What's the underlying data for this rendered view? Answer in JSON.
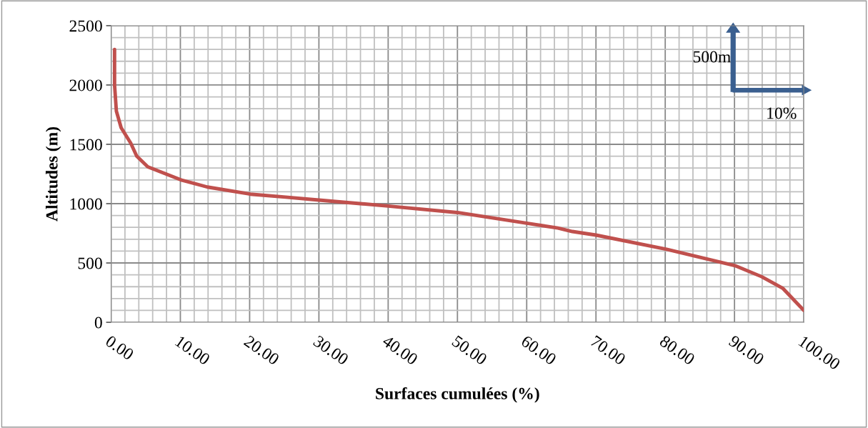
{
  "chart_data": {
    "type": "line",
    "xlabel": "Surfaces cumulées (%)",
    "ylabel": "Altitudes (m)",
    "x": [
      0.5,
      0.5,
      0.76,
      1.45,
      2.83,
      3.7,
      5.3,
      10.1,
      13.9,
      20.1,
      25.2,
      30.0,
      40.0,
      50.0,
      60.0,
      64.5,
      66.6,
      70.0,
      80.2,
      90.2,
      93.9,
      97.0,
      100.0
    ],
    "series": [
      {
        "color": "#c0504d",
        "values": [
          2300,
          2000,
          1780,
          1640,
          1510,
          1400,
          1310,
          1200,
          1140,
          1080,
          1055,
          1030,
          980,
          925,
          835,
          795,
          765,
          735,
          615,
          475,
          385,
          285,
          100
        ]
      }
    ],
    "xlim": [
      0,
      100
    ],
    "ylim": [
      0,
      2500
    ],
    "xticks": [
      {
        "value": 0,
        "label": "0.00"
      },
      {
        "value": 10,
        "label": "10.00"
      },
      {
        "value": 20,
        "label": "20.00"
      },
      {
        "value": 30,
        "label": "30.00"
      },
      {
        "value": 40,
        "label": "40.00"
      },
      {
        "value": 50,
        "label": "50.00"
      },
      {
        "value": 60,
        "label": "60.00"
      },
      {
        "value": 70,
        "label": "70.00"
      },
      {
        "value": 80,
        "label": "80.00"
      },
      {
        "value": 90,
        "label": "90.00"
      },
      {
        "value": 100,
        "label": "100.00"
      }
    ],
    "yticks": [
      0,
      500,
      1000,
      1500,
      2000,
      2500
    ],
    "grid": true,
    "marker": "none",
    "line_style": "solid",
    "annotations": [
      "500m",
      "10%"
    ]
  }
}
